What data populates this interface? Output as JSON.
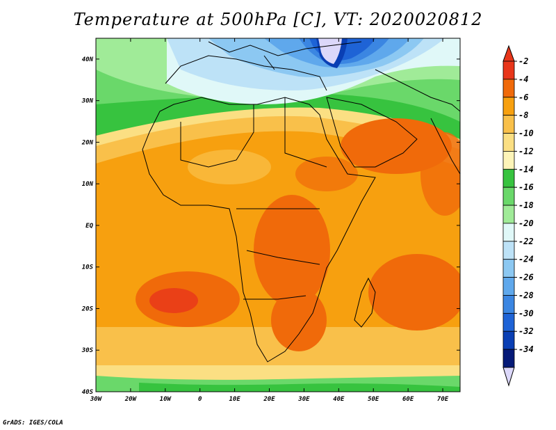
{
  "title": "Temperature at 500hPa [C], VT: 2020020812",
  "credit": "GrADS: IGES/COLA",
  "map": {
    "lon_range": [
      -30,
      75
    ],
    "lat_range": [
      -40,
      45
    ],
    "x_ticks": [
      {
        "lon": -30,
        "label": "30W"
      },
      {
        "lon": -20,
        "label": "20W"
      },
      {
        "lon": -10,
        "label": "10W"
      },
      {
        "lon": 0,
        "label": "0"
      },
      {
        "lon": 10,
        "label": "10E"
      },
      {
        "lon": 20,
        "label": "20E"
      },
      {
        "lon": 30,
        "label": "30E"
      },
      {
        "lon": 40,
        "label": "40E"
      },
      {
        "lon": 50,
        "label": "50E"
      },
      {
        "lon": 60,
        "label": "60E"
      },
      {
        "lon": 70,
        "label": "70E"
      }
    ],
    "y_ticks": [
      {
        "lat": 40,
        "label": "40N"
      },
      {
        "lat": 30,
        "label": "30N"
      },
      {
        "lat": 20,
        "label": "20N"
      },
      {
        "lat": 10,
        "label": "10N"
      },
      {
        "lat": 0,
        "label": "EQ"
      },
      {
        "lat": -10,
        "label": "10S"
      },
      {
        "lat": -20,
        "label": "20S"
      },
      {
        "lat": -30,
        "label": "30S"
      },
      {
        "lat": -40,
        "label": "40S"
      }
    ]
  },
  "colorbar": {
    "levels": [
      "-2",
      "-4",
      "-6",
      "-8",
      "-10",
      "-12",
      "-14",
      "-16",
      "-18",
      "-20",
      "-22",
      "-24",
      "-26",
      "-28",
      "-30",
      "-32",
      "-34"
    ],
    "colors": [
      "#e8361a",
      "#f06a0a",
      "#f7a00f",
      "#f9c04a",
      "#fbdf83",
      "#fdf4b8",
      "#37c33f",
      "#6ad86a",
      "#a0eb98",
      "#e0f8f8",
      "#bde2f7",
      "#8cc8f2",
      "#5fa8ec",
      "#3b86e2",
      "#1e63d6",
      "#0a3fb4",
      "#051a78"
    ],
    "top_color": "#e8361a",
    "bottom_color": "#dcd8fa"
  }
}
